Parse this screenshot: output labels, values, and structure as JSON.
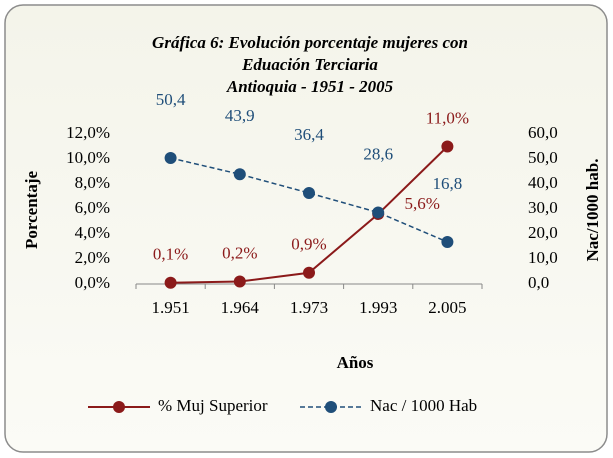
{
  "chart_data": {
    "type": "line",
    "title": [
      "Gráfica 6: Evolución porcentaje mujeres con",
      "Eduación Terciaria",
      "Antioquia - 1951 - 2005"
    ],
    "xlabel": "Años",
    "ylabel": "Porcentaje",
    "y2label": "Nac/1000 hab.",
    "categories": [
      "1.951",
      "1.964",
      "1.973",
      "1.993",
      "2.005"
    ],
    "series": [
      {
        "name": "% Muj Superior",
        "color": "#8b1a1a",
        "values": [
          0.1,
          0.2,
          0.9,
          5.6,
          11.0
        ],
        "value_labels": [
          "0,1%",
          "0,2%",
          "0,9%",
          "5,6%",
          "11,0%"
        ]
      },
      {
        "name": "Nac / 1000 Hab",
        "color": "#1f4e79",
        "axis": "y2",
        "dashed": true,
        "values": [
          50.4,
          43.9,
          36.4,
          28.6,
          16.8
        ],
        "value_labels": [
          "50,4",
          "43,9",
          "36,4",
          "28,6",
          "16,8"
        ]
      }
    ],
    "ylim": [
      0,
      12
    ],
    "yticks": [
      {
        "value": 0,
        "label": "0,0%"
      },
      {
        "value": 2,
        "label": "2,0%"
      },
      {
        "value": 4,
        "label": "4,0%"
      },
      {
        "value": 6,
        "label": "6,0%"
      },
      {
        "value": 8,
        "label": "8,0%"
      },
      {
        "value": 10,
        "label": "10,0%"
      },
      {
        "value": 12,
        "label": "12,0%"
      }
    ],
    "y2lim": [
      0,
      60
    ],
    "y2ticks": [
      {
        "value": 0,
        "label": "0,0"
      },
      {
        "value": 10,
        "label": "10,0"
      },
      {
        "value": 20,
        "label": "20,0"
      },
      {
        "value": 30,
        "label": "30,0"
      },
      {
        "value": 40,
        "label": "40,0"
      },
      {
        "value": 50,
        "label": "50,0"
      },
      {
        "value": 60,
        "label": "60,0"
      }
    ],
    "grid": false,
    "legend": "bottom"
  }
}
